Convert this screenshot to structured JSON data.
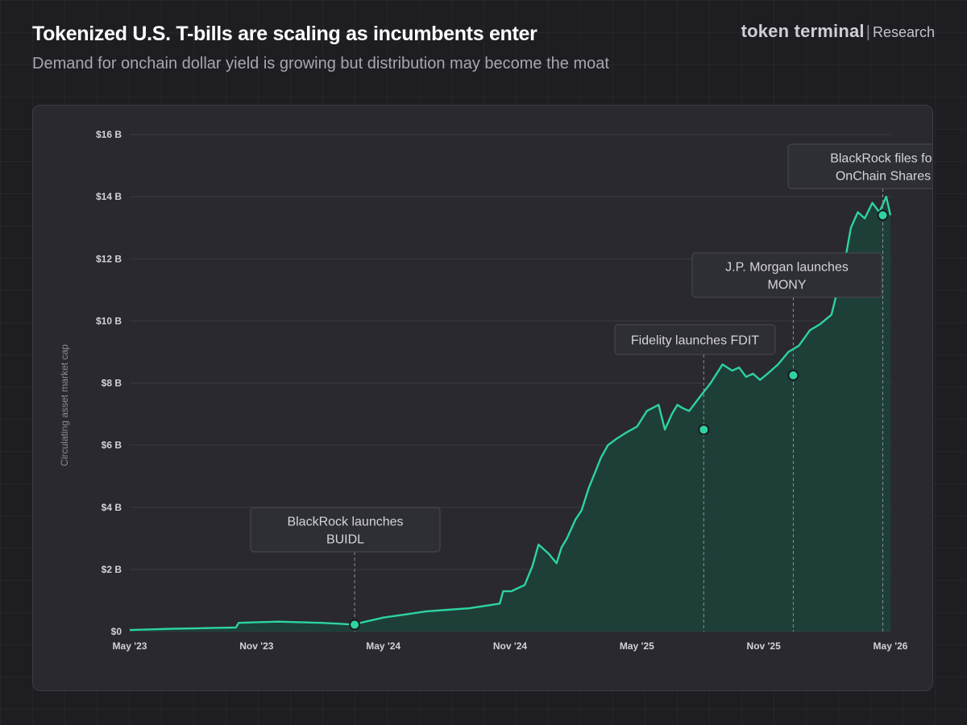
{
  "header": {
    "title": "Tokenized U.S. T-bills are scaling as incumbents enter",
    "subtitle": "Demand for onchain dollar yield is growing but distribution may become the moat",
    "brand_name": "token terminal",
    "brand_separator": "|",
    "brand_suffix": "Research"
  },
  "colors": {
    "line": "#2ed3a0",
    "area": "#1e3f38",
    "marker": "#2ed3a0",
    "grid": "#3a3a42",
    "background": "#1d1d22",
    "panel": "#29292f"
  },
  "chart_data": {
    "type": "area",
    "ylabel": "Circulating asset market cap",
    "xlabel": "",
    "y_unit": "B",
    "ylim": [
      0,
      16
    ],
    "xlim": [
      "2023-05-01",
      "2026-05-01"
    ],
    "y_ticks": [
      "$0",
      "$2 B",
      "$4 B",
      "$6 B",
      "$8 B",
      "$10 B",
      "$12 B",
      "$14 B",
      "$16 B"
    ],
    "x_ticks": [
      "May '23",
      "Nov '23",
      "May '24",
      "Nov '24",
      "May '25",
      "Nov '25",
      "May '26"
    ],
    "grid": true,
    "legend": "none",
    "series": [
      {
        "x": [
          "2023-05-01",
          "2023-06-01",
          "2023-07-01",
          "2023-08-01",
          "2023-09-01",
          "2023-10-01",
          "2023-10-05",
          "2023-11-01",
          "2023-12-01",
          "2024-01-01",
          "2024-02-01",
          "2024-03-01",
          "2024-03-20",
          "2024-04-01",
          "2024-05-01",
          "2024-06-01",
          "2024-07-01",
          "2024-08-01",
          "2024-09-01",
          "2024-10-01",
          "2024-10-15",
          "2024-10-20",
          "2024-11-01",
          "2024-11-20",
          "2024-12-01",
          "2024-12-10",
          "2024-12-25",
          "2025-01-05",
          "2025-01-12",
          "2025-01-20",
          "2025-02-01",
          "2025-02-10",
          "2025-02-20",
          "2025-03-01",
          "2025-03-10",
          "2025-03-20",
          "2025-04-01",
          "2025-04-15",
          "2025-05-01",
          "2025-05-15",
          "2025-06-01",
          "2025-06-10",
          "2025-06-20",
          "2025-06-28",
          "2025-07-05",
          "2025-07-15",
          "2025-08-01",
          "2025-08-15",
          "2025-09-01",
          "2025-09-15",
          "2025-09-25",
          "2025-10-05",
          "2025-10-15",
          "2025-10-25",
          "2025-11-05",
          "2025-11-20",
          "2025-12-05",
          "2025-12-20",
          "2026-01-05",
          "2026-01-20",
          "2026-02-05",
          "2026-02-15",
          "2026-02-25",
          "2026-03-05",
          "2026-03-15",
          "2026-03-25",
          "2026-04-05",
          "2026-04-15",
          "2026-04-25",
          "2026-05-01"
        ],
        "values": [
          0.05,
          0.07,
          0.09,
          0.1,
          0.12,
          0.13,
          0.28,
          0.3,
          0.32,
          0.3,
          0.28,
          0.25,
          0.22,
          0.3,
          0.45,
          0.55,
          0.65,
          0.7,
          0.75,
          0.85,
          0.9,
          1.3,
          1.3,
          1.5,
          2.1,
          2.8,
          2.5,
          2.2,
          2.7,
          3.0,
          3.6,
          3.9,
          4.6,
          5.1,
          5.6,
          6.0,
          6.2,
          6.4,
          6.6,
          7.1,
          7.3,
          6.5,
          7.0,
          7.3,
          7.2,
          7.1,
          7.6,
          8.0,
          8.6,
          8.4,
          8.5,
          8.2,
          8.3,
          8.1,
          8.3,
          8.6,
          9.0,
          9.2,
          9.7,
          9.9,
          10.2,
          11.1,
          12.0,
          13.0,
          13.5,
          13.3,
          13.8,
          13.5,
          14.0,
          13.4
        ]
      }
    ],
    "annotations": [
      {
        "text": "BlackRock launches BUIDL",
        "lines": [
          "BlackRock launches",
          "BUIDL"
        ],
        "x": "2024-03-20",
        "y": 0.22
      },
      {
        "text": "Fidelity launches FDIT",
        "lines": [
          "Fidelity launches FDIT"
        ],
        "x": "2025-08-05",
        "y": 6.5
      },
      {
        "text": "J.P. Morgan launches MONY",
        "lines": [
          "J.P. Morgan launches",
          "MONY"
        ],
        "x": "2025-12-12",
        "y": 8.25
      },
      {
        "text": "BlackRock files for OnChain Shares",
        "lines": [
          "BlackRock files for",
          "OnChain Shares"
        ],
        "x": "2026-04-20",
        "y": 13.4
      }
    ]
  }
}
